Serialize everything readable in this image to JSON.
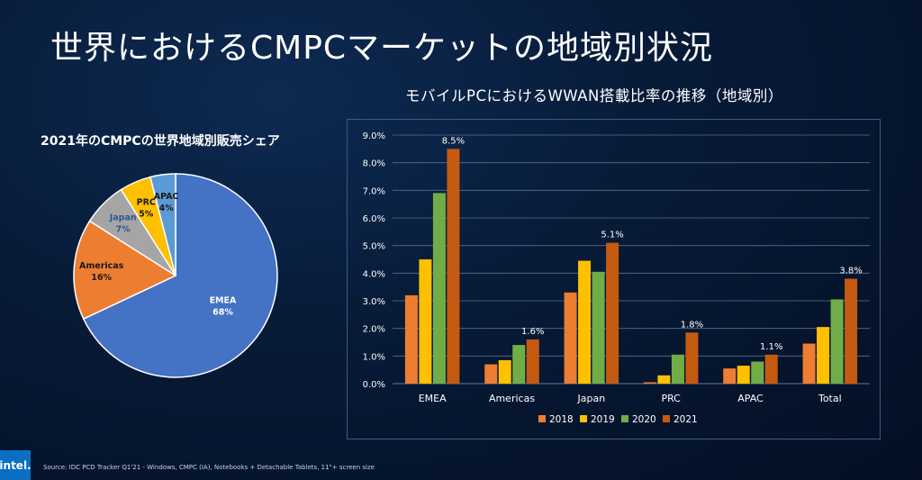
{
  "slide": {
    "title": "世界におけるCMPCマーケットの地域別状況",
    "source": "Source: IDC PCD Tracker Q1'21 - Windows, CMPC (IA), Notebooks + Detachable Tablets, 11\"+ screen size",
    "logo_text": "intel."
  },
  "chart_data": [
    {
      "type": "pie",
      "title": "2021年のCMPCの世界地域別販売シェア",
      "slices": [
        {
          "label": "EMEA",
          "value": 68,
          "display": "68%",
          "color": "#4472c4",
          "label_color": "#ffffff"
        },
        {
          "label": "Americas",
          "value": 16,
          "display": "16%",
          "color": "#ed7d31",
          "label_color": "#1a1a1a"
        },
        {
          "label": "Japan",
          "value": 7,
          "display": "7%",
          "color": "#a5a5a5",
          "label_color": "#2e5597"
        },
        {
          "label": "PRC",
          "value": 5,
          "display": "5%",
          "color": "#ffc000",
          "label_color": "#1a1a1a"
        },
        {
          "label": "APAC",
          "value": 4,
          "display": "4%",
          "color": "#5b9bd5",
          "label_color": "#1a1a1a"
        }
      ]
    },
    {
      "type": "bar",
      "title": "モバイルPCにおけるWWAN搭載比率の推移（地域別）",
      "categories": [
        "EMEA",
        "Americas",
        "Japan",
        "PRC",
        "APAC",
        "Total"
      ],
      "series": [
        {
          "name": "2018",
          "color": "#ed7d31",
          "values": [
            3.2,
            0.7,
            3.3,
            0.05,
            0.55,
            1.45
          ]
        },
        {
          "name": "2019",
          "color": "#ffc000",
          "values": [
            4.5,
            0.85,
            4.45,
            0.3,
            0.65,
            2.05
          ]
        },
        {
          "name": "2020",
          "color": "#70ad47",
          "values": [
            6.9,
            1.4,
            4.05,
            1.05,
            0.8,
            3.05
          ]
        },
        {
          "name": "2021",
          "color": "#c55a11",
          "values": [
            8.5,
            1.6,
            5.1,
            1.85,
            1.05,
            3.8
          ]
        }
      ],
      "data_labels": [
        "8.5%",
        "1.6%",
        "5.1%",
        "1.8%",
        "1.1%",
        "3.8%"
      ],
      "y_ticks": [
        "0.0%",
        "1.0%",
        "2.0%",
        "3.0%",
        "4.0%",
        "5.0%",
        "6.0%",
        "7.0%",
        "8.0%",
        "9.0%"
      ],
      "ylim": [
        0,
        9
      ],
      "grid": true,
      "legend_position": "bottom"
    }
  ]
}
